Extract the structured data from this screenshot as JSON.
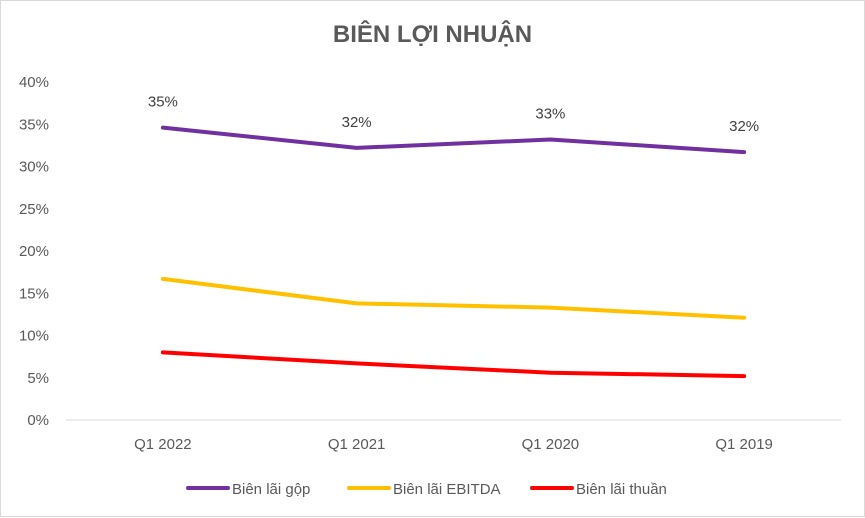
{
  "chart_data": {
    "type": "line",
    "title": "BIÊN LỢI NHUẬN",
    "xlabel": "",
    "ylabel": "",
    "categories": [
      "Q1 2022",
      "Q1 2021",
      "Q1 2020",
      "Q1 2019"
    ],
    "y_ticks": [
      "0%",
      "5%",
      "10%",
      "15%",
      "20%",
      "25%",
      "30%",
      "35%",
      "40%"
    ],
    "ylim": [
      0,
      40
    ],
    "grid": false,
    "legend_position": "bottom",
    "series": [
      {
        "name": "Biên lãi gộp",
        "color": "#7030a0",
        "values": [
          34.6,
          32.2,
          33.2,
          31.7
        ],
        "data_labels": [
          "35%",
          "32%",
          "33%",
          "32%"
        ]
      },
      {
        "name": "Biên lãi EBITDA",
        "color": "#ffc000",
        "values": [
          16.7,
          13.8,
          13.3,
          12.1
        ],
        "data_labels": null
      },
      {
        "name": "Biên lãi thuần",
        "color": "#ff0000",
        "values": [
          8.0,
          6.7,
          5.6,
          5.2
        ],
        "data_labels": null
      }
    ]
  }
}
